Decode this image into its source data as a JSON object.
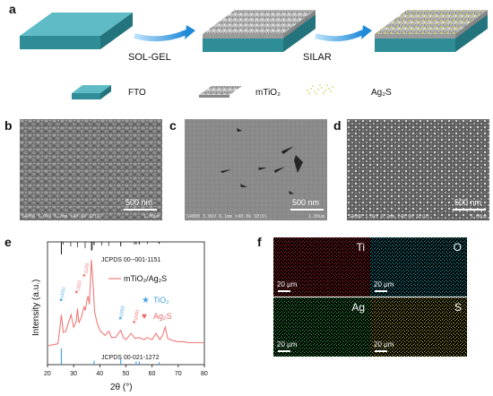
{
  "panel_a": {
    "label": "a",
    "step1": "SOL-GEL",
    "step2": "SILAR",
    "legend": [
      {
        "name": "FTO",
        "icon": "fto-slab-icon"
      },
      {
        "name": "mTiO₂",
        "icon": "mtio2-film-icon"
      },
      {
        "name": "Ag₂S",
        "icon": "ag2s-particles-icon"
      }
    ]
  },
  "panel_b": {
    "label": "b",
    "scale": "500 nm",
    "meta": "S4800 3.0kV 6.2mm x40.0k SE(U)",
    "meta_scale": "1.00um"
  },
  "panel_c": {
    "label": "c",
    "scale": "500 nm",
    "meta": "S4800 3.0kV 6.1mm x40.0k SE(U)",
    "meta_scale": "1.00um"
  },
  "panel_d": {
    "label": "d",
    "scale": "500 nm",
    "meta": "S4800 3.0kV 6.2mm x40.0k SE(U)",
    "meta_scale": "1.00um"
  },
  "panel_e": {
    "label": "e",
    "ref_top": "JCPDS 00--001-1151",
    "ref_bottom": "JCPDS 00-021-1272",
    "series_name": "mTiO₂/Ag₂S",
    "tio2_legend": "TiO₂",
    "ag2s_legend": "Ag₂S",
    "peak_labels": [
      "(101)",
      "(111)",
      "(120)",
      "(200)",
      "(220)"
    ],
    "colors": {
      "curve": "#f07a7a",
      "tio2": "#4ba3e0",
      "ag2s": "#e96a6a"
    }
  },
  "chart_data": {
    "type": "line",
    "xlabel": "2θ (°)",
    "ylabel": "Intensity (a.u.)",
    "xlim": [
      20,
      80
    ],
    "xticks": [
      20,
      30,
      40,
      50,
      60,
      70,
      80
    ],
    "series": [
      {
        "name": "mTiO₂/Ag₂S",
        "x": [
          20,
          22,
          24,
          25.3,
          26,
          27,
          28,
          29,
          30,
          31,
          31.5,
          32,
          33,
          34,
          34.4,
          35,
          35.5,
          36,
          36.8,
          37.5,
          38,
          39,
          40,
          42,
          43.5,
          44.5,
          46,
          48,
          49,
          50,
          52,
          53.5,
          55,
          57,
          58,
          60,
          61.5,
          63,
          64,
          65,
          66,
          68,
          70,
          72,
          74,
          76,
          78,
          80
        ],
        "y": [
          0.12,
          0.13,
          0.14,
          0.42,
          0.25,
          0.26,
          0.34,
          0.42,
          0.3,
          0.36,
          0.48,
          0.34,
          0.4,
          0.5,
          0.46,
          0.55,
          0.6,
          0.52,
          0.95,
          0.7,
          0.45,
          0.34,
          0.27,
          0.22,
          0.26,
          0.2,
          0.2,
          0.27,
          0.2,
          0.18,
          0.24,
          0.19,
          0.2,
          0.18,
          0.2,
          0.18,
          0.24,
          0.18,
          0.22,
          0.3,
          0.19,
          0.17,
          0.16,
          0.16,
          0.15,
          0.15,
          0.15,
          0.15
        ]
      }
    ],
    "ref_tio2": [
      25.3,
      37.8,
      48.0,
      53.9,
      55.1,
      62.7
    ],
    "ref_tio2_heights": [
      1.0,
      0.25,
      0.35,
      0.2,
      0.2,
      0.15
    ],
    "ref_ag2s": [
      26.0,
      28.9,
      31.5,
      34.4,
      36.8,
      37.1,
      40.8,
      43.4,
      53.2,
      58.2
    ],
    "ref_ag2s_heights": [
      0.3,
      0.5,
      0.6,
      0.7,
      1.0,
      0.9,
      0.4,
      0.45,
      0.3,
      0.25
    ]
  },
  "panel_f": {
    "label": "f",
    "maps": [
      {
        "element": "Ti",
        "scale": "20 μm",
        "color": "#c8202a"
      },
      {
        "element": "O",
        "scale": "20 μm",
        "color": "#1fa7b8"
      },
      {
        "element": "Ag",
        "scale": "20 μm",
        "color": "#2db34a"
      },
      {
        "element": "S",
        "scale": "20 μm",
        "color": "#b8b23a"
      }
    ]
  }
}
